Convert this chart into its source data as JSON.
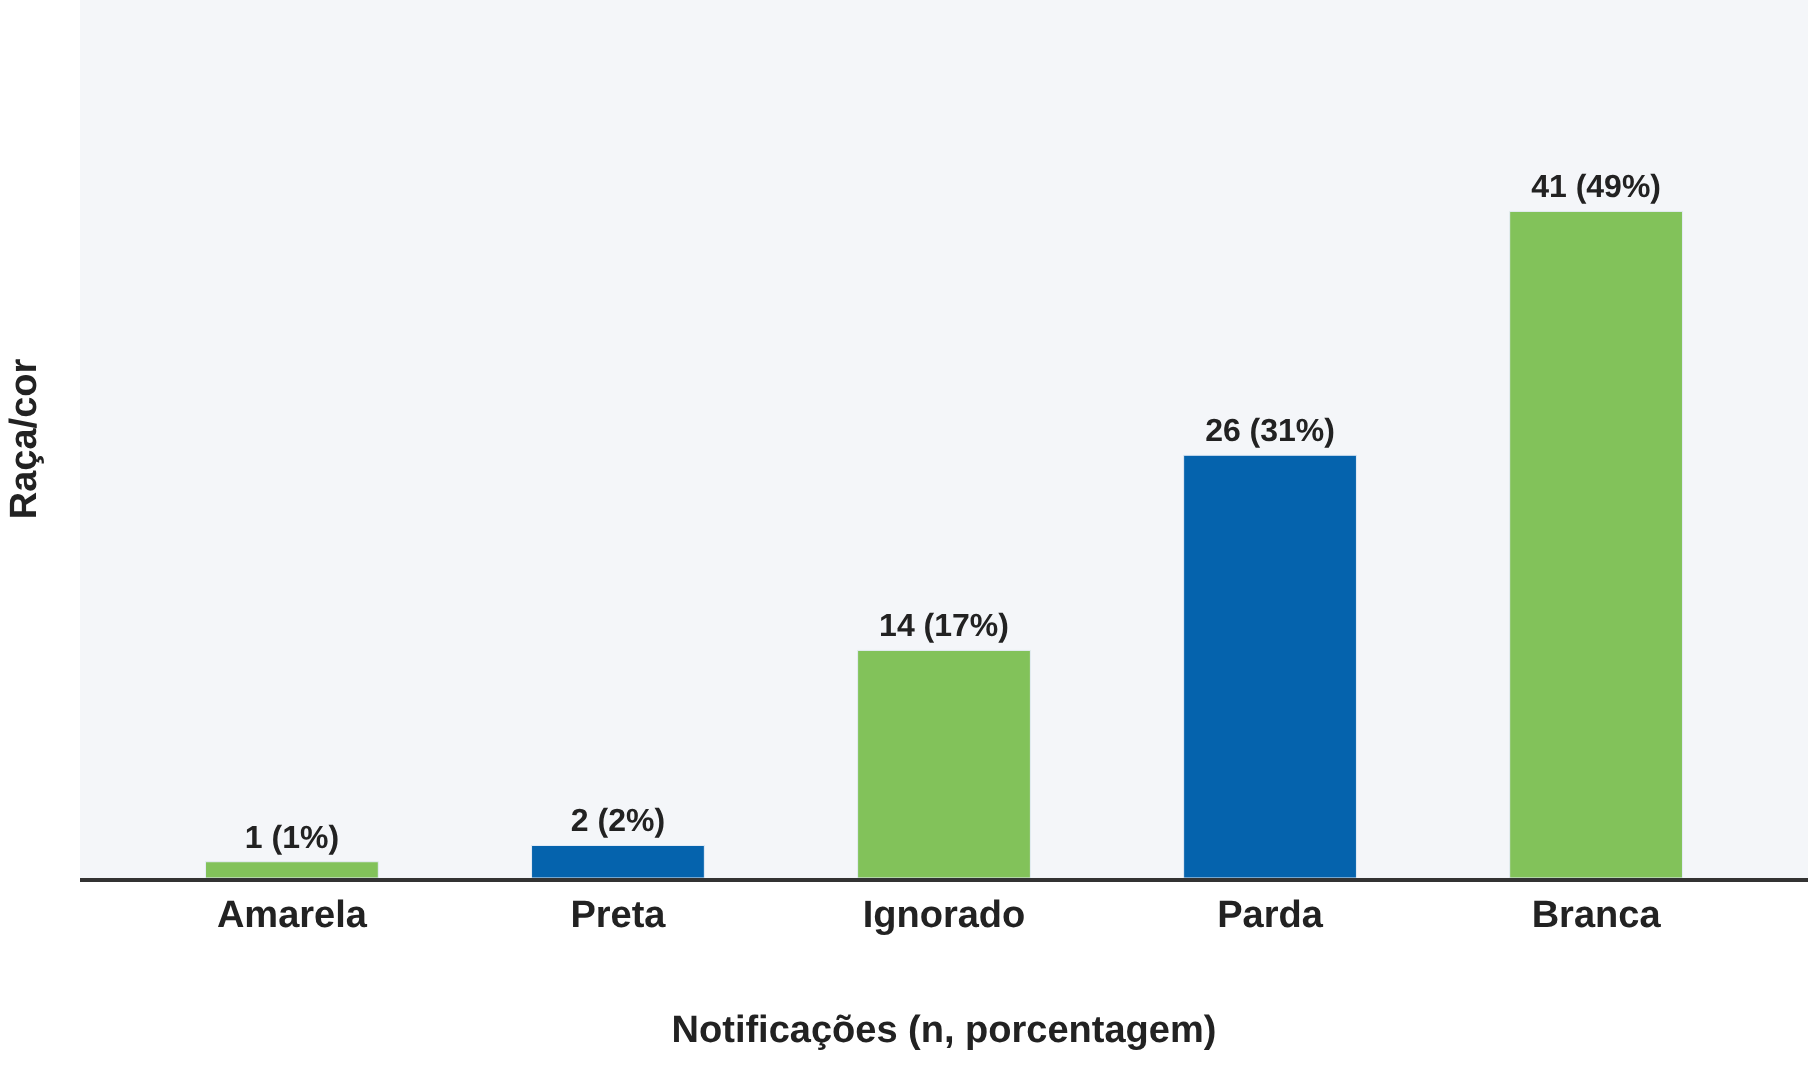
{
  "chart_data": {
    "type": "bar",
    "xlabel": "Notificações (n, porcentagem)",
    "ylabel": "Raça/cor",
    "categories": [
      "Amarela",
      "Preta",
      "Ignorado",
      "Parda",
      "Branca"
    ],
    "values": [
      1,
      2,
      14,
      26,
      41
    ],
    "value_labels": [
      "1 (1%)",
      "2 (2%)",
      "14 (17%)",
      "26 (31%)",
      "41 (49%)"
    ],
    "colors": [
      "#82c25a",
      "#0563ad",
      "#82c25a",
      "#0563ad",
      "#82c25a"
    ],
    "ylim": [
      0,
      54
    ],
    "tick_labels": "x"
  }
}
